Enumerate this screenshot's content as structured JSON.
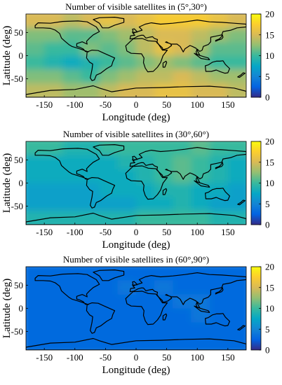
{
  "chart_data": [
    {
      "type": "heatmap",
      "title": "Number of visible satellites in (5°,30°)",
      "xlabel": "Longitude (deg)",
      "ylabel": "Latitude (deg)",
      "xlim": [
        -180,
        180
      ],
      "ylim": [
        -90,
        90
      ],
      "xticks": [
        -150,
        -100,
        -50,
        0,
        50,
        100,
        150
      ],
      "yticks": [
        50,
        0,
        -50
      ],
      "colorbar": {
        "clim": [
          0,
          20
        ],
        "ticks": [
          0,
          5,
          10,
          15,
          20
        ],
        "colormap": "parula"
      },
      "lat": [
        75,
        45,
        15,
        -15,
        -45,
        -75
      ],
      "lon": [
        -165,
        -135,
        -105,
        -75,
        -45,
        -15,
        15,
        45,
        75,
        105,
        135,
        165
      ],
      "values": [
        [
          15,
          15,
          14,
          15,
          16,
          15,
          16,
          17,
          17,
          17,
          16,
          15
        ],
        [
          12,
          12,
          11,
          11,
          12,
          13,
          14,
          15,
          15,
          14,
          13,
          12
        ],
        [
          11,
          10,
          10,
          12,
          11,
          12,
          14,
          16,
          15,
          13,
          11,
          11
        ],
        [
          10,
          9,
          8,
          9,
          10,
          11,
          12,
          13,
          12,
          11,
          10,
          10
        ],
        [
          12,
          12,
          11,
          10,
          12,
          13,
          14,
          14,
          15,
          14,
          13,
          13
        ],
        [
          14,
          14,
          13,
          13,
          14,
          15,
          15,
          16,
          16,
          15,
          15,
          14
        ]
      ]
    },
    {
      "type": "heatmap",
      "title": "Number of visible satellites in (30°,60°)",
      "xlabel": "Longitude (deg)",
      "ylabel": "Latitude (deg)",
      "xlim": [
        -180,
        180
      ],
      "ylim": [
        -90,
        90
      ],
      "xticks": [
        -150,
        -100,
        -50,
        0,
        50,
        100,
        150
      ],
      "yticks": [
        50,
        0,
        -50
      ],
      "colorbar": {
        "clim": [
          0,
          20
        ],
        "ticks": [
          0,
          5,
          10,
          15,
          20
        ],
        "colormap": "parula"
      },
      "lat": [
        75,
        45,
        15,
        -15,
        -45,
        -75
      ],
      "lon": [
        -165,
        -135,
        -105,
        -75,
        -45,
        -15,
        15,
        45,
        75,
        105,
        135,
        165
      ],
      "values": [
        [
          10,
          10,
          9,
          9,
          10,
          10,
          10,
          10,
          10,
          11,
          10,
          10
        ],
        [
          8,
          8,
          8,
          8,
          8,
          9,
          9,
          10,
          11,
          10,
          9,
          8
        ],
        [
          8,
          8,
          8,
          8,
          8,
          8,
          9,
          10,
          11,
          10,
          9,
          8
        ],
        [
          7,
          7,
          7,
          7,
          8,
          8,
          8,
          9,
          9,
          8,
          8,
          7
        ],
        [
          7,
          7,
          7,
          7,
          7,
          7,
          8,
          8,
          9,
          8,
          7,
          7
        ],
        [
          9,
          9,
          9,
          9,
          9,
          9,
          10,
          10,
          10,
          10,
          9,
          9
        ]
      ]
    },
    {
      "type": "heatmap",
      "title": "Number of visible satellites in (60°,90°)",
      "xlabel": "Longitude (deg)",
      "ylabel": "Latitude (deg)",
      "xlim": [
        -180,
        180
      ],
      "ylim": [
        -90,
        90
      ],
      "xticks": [
        -150,
        -100,
        -50,
        0,
        50,
        100,
        150
      ],
      "yticks": [
        50,
        0,
        -50
      ],
      "colorbar": {
        "clim": [
          0,
          20
        ],
        "ticks": [
          0,
          5,
          10,
          15,
          20
        ],
        "colormap": "parula"
      },
      "lat": [
        75,
        45,
        15,
        -15,
        -45,
        -75
      ],
      "lon": [
        -165,
        -135,
        -105,
        -75,
        -45,
        -15,
        15,
        45,
        75,
        105,
        135,
        165
      ],
      "values": [
        [
          3,
          3,
          3,
          3,
          3,
          3,
          3,
          3,
          3,
          3,
          3,
          3
        ],
        [
          3,
          3,
          3,
          3,
          3,
          4,
          3,
          4,
          3,
          3,
          3,
          3
        ],
        [
          3,
          3,
          3,
          3,
          3,
          3,
          3,
          3,
          4,
          4,
          3,
          3
        ],
        [
          3,
          3,
          3,
          3,
          3,
          3,
          3,
          3,
          3,
          4,
          3,
          3
        ],
        [
          3,
          3,
          3,
          3,
          3,
          3,
          3,
          3,
          3,
          3,
          3,
          3
        ],
        [
          3,
          3,
          3,
          3,
          3,
          3,
          3,
          3,
          3,
          3,
          3,
          3
        ]
      ]
    }
  ]
}
